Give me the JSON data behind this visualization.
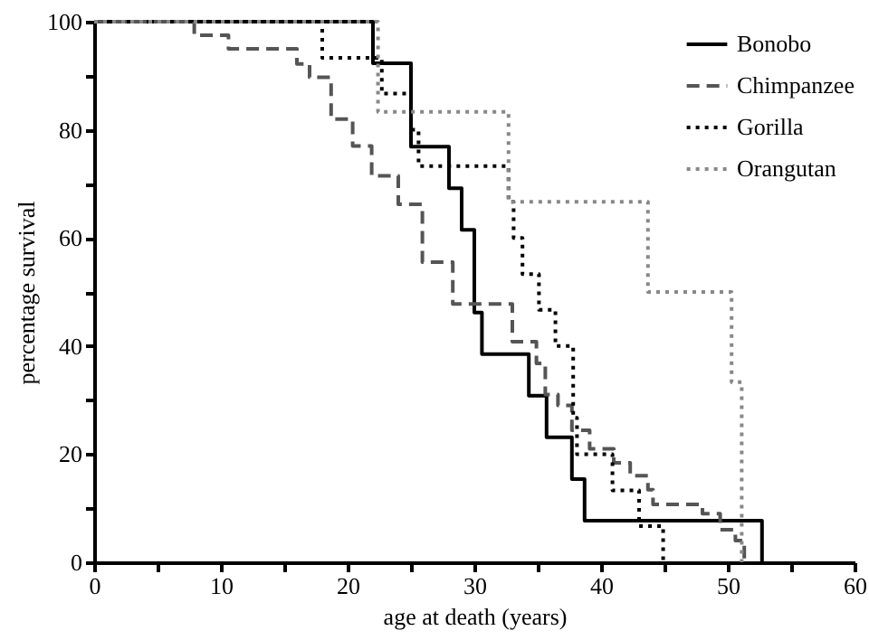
{
  "chart_data": {
    "type": "step",
    "xlabel": "age at death (years)",
    "ylabel": "percentage survival",
    "xlim": [
      0,
      60
    ],
    "ylim": [
      0,
      100
    ],
    "xticks": [
      0,
      {
        "value": 5,
        "label": null
      },
      10,
      {
        "value": 15,
        "label": null
      },
      20,
      {
        "value": 25,
        "label": null
      },
      30,
      {
        "value": 35,
        "label": null
      },
      40,
      {
        "value": 45,
        "label": null
      },
      50,
      {
        "value": 55,
        "label": null
      },
      60
    ],
    "yticks": [
      0,
      {
        "value": 10,
        "label": null
      },
      20,
      {
        "value": 30,
        "label": null
      },
      40,
      {
        "value": 50,
        "label": null
      },
      60,
      {
        "value": 70,
        "label": null
      },
      80,
      {
        "value": 90,
        "label": null
      },
      100
    ],
    "grid": false,
    "legend": "top right",
    "marker": "none",
    "series": [
      {
        "name": "Bonobo",
        "color": "#000000",
        "line_style": "solid",
        "x": [
          0,
          22,
          25,
          28,
          29,
          30,
          30.6,
          34.3,
          35.7,
          37.7,
          38.7,
          52.7
        ],
        "values": [
          100,
          92.3,
          76.9,
          69.2,
          61.5,
          46.2,
          38.5,
          30.8,
          23.1,
          15.4,
          7.7,
          0
        ]
      },
      {
        "name": "Chimpanzee",
        "color": "#555555",
        "line_style": "dashed",
        "x": [
          0,
          7.9,
          10.6,
          16,
          17,
          18.7,
          20.4,
          21.9,
          24,
          25.9,
          28.3,
          33,
          34.9,
          35.6,
          36.6,
          37.7,
          39.1,
          41,
          42.3,
          43.7,
          44.1,
          48,
          49.4,
          50.6,
          51.3
        ],
        "values": [
          100,
          97.5,
          95,
          92.2,
          89.7,
          82,
          77,
          71.5,
          66.2,
          55.5,
          47.8,
          40.8,
          36.8,
          31,
          29,
          24.4,
          21,
          18.4,
          16,
          13.4,
          10.7,
          9,
          6,
          4,
          0
        ]
      },
      {
        "name": "Gorilla",
        "color": "#000000",
        "line_style": "dotted",
        "x": [
          0,
          18,
          22.7,
          25,
          25.6,
          32.7,
          33.1,
          33.8,
          35.1,
          36.4,
          37.8,
          38.1,
          40.9,
          43,
          44.9
        ],
        "values": [
          100,
          93.3,
          86.7,
          80,
          73.3,
          66.7,
          60,
          53.3,
          46.7,
          40,
          26.7,
          20,
          13.3,
          6.7,
          0
        ]
      },
      {
        "name": "Orangutan",
        "color": "#888888",
        "line_style": "dotted",
        "x": [
          0,
          22.4,
          32.7,
          43.7,
          50.3,
          51.1
        ],
        "values": [
          100,
          83.3,
          66.7,
          50,
          33.3,
          0
        ]
      }
    ]
  }
}
